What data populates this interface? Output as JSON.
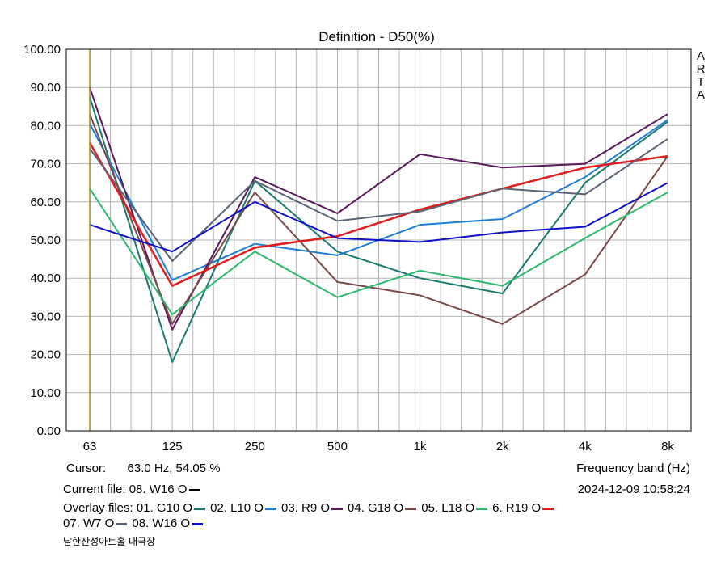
{
  "chart_data": {
    "type": "line",
    "title": "Definition - D50(%)",
    "xlabel": "Frequency band (Hz)",
    "ylabel": "",
    "categories": [
      "63",
      "125",
      "250",
      "500",
      "1k",
      "2k",
      "4k",
      "8k"
    ],
    "y_ticks": [
      "100.00",
      "90.00",
      "80.00",
      "70.00",
      "60.00",
      "50.00",
      "40.00",
      "30.00",
      "20.00",
      "10.00",
      "0.00"
    ],
    "ylim": [
      0,
      100
    ],
    "grid": true,
    "cursor_index": 0,
    "series": [
      {
        "name": "01. G10 O",
        "color": "#1a7a6e",
        "values": [
          87.5,
          18.0,
          65.5,
          47.0,
          40.0,
          36.0,
          65.0,
          81.0
        ]
      },
      {
        "name": "02. L10 O",
        "color": "#1e7fd6",
        "values": [
          80.5,
          39.5,
          49.0,
          46.0,
          54.0,
          55.5,
          66.5,
          81.5
        ]
      },
      {
        "name": "03. R9 O",
        "color": "#5a1a5e",
        "values": [
          90.0,
          26.5,
          66.5,
          57.0,
          72.5,
          69.0,
          70.0,
          83.0
        ]
      },
      {
        "name": "04. G18 O",
        "color": "#7a4a48",
        "values": [
          83.0,
          28.0,
          62.5,
          39.0,
          35.5,
          28.0,
          41.0,
          72.0
        ]
      },
      {
        "name": "05. L18 O",
        "color": "#2cb86e",
        "values": [
          63.5,
          30.5,
          47.0,
          35.0,
          42.0,
          38.0,
          50.5,
          62.5
        ]
      },
      {
        "name": "6. R19 O",
        "color": "#e01c1c",
        "values": [
          75.5,
          38.0,
          48.0,
          51.0,
          58.0,
          63.5,
          69.0,
          72.0
        ]
      },
      {
        "name": "07. W7 O",
        "color": "#5a6478",
        "values": [
          74.0,
          44.5,
          65.5,
          55.0,
          57.5,
          63.5,
          62.0,
          76.5
        ]
      },
      {
        "name": "08. W16 O",
        "color": "#1010c8",
        "values": [
          54.0,
          47.0,
          60.0,
          50.5,
          49.5,
          52.0,
          53.5,
          65.0
        ]
      }
    ]
  },
  "arta_logo": [
    "A",
    "R",
    "T",
    "A"
  ],
  "info": {
    "cursor_label": "Cursor:",
    "cursor_value": "63.0 Hz, 54.05 %",
    "frequency_band": "Frequency band (Hz)",
    "current_file": "Current file: 08. W16 O",
    "current_file_color": "#000000",
    "timestamp": "2024-12-09   10:58:24",
    "overlay_prefix": "Overlay files:",
    "footer": "남한산성아트홀 대극장"
  }
}
